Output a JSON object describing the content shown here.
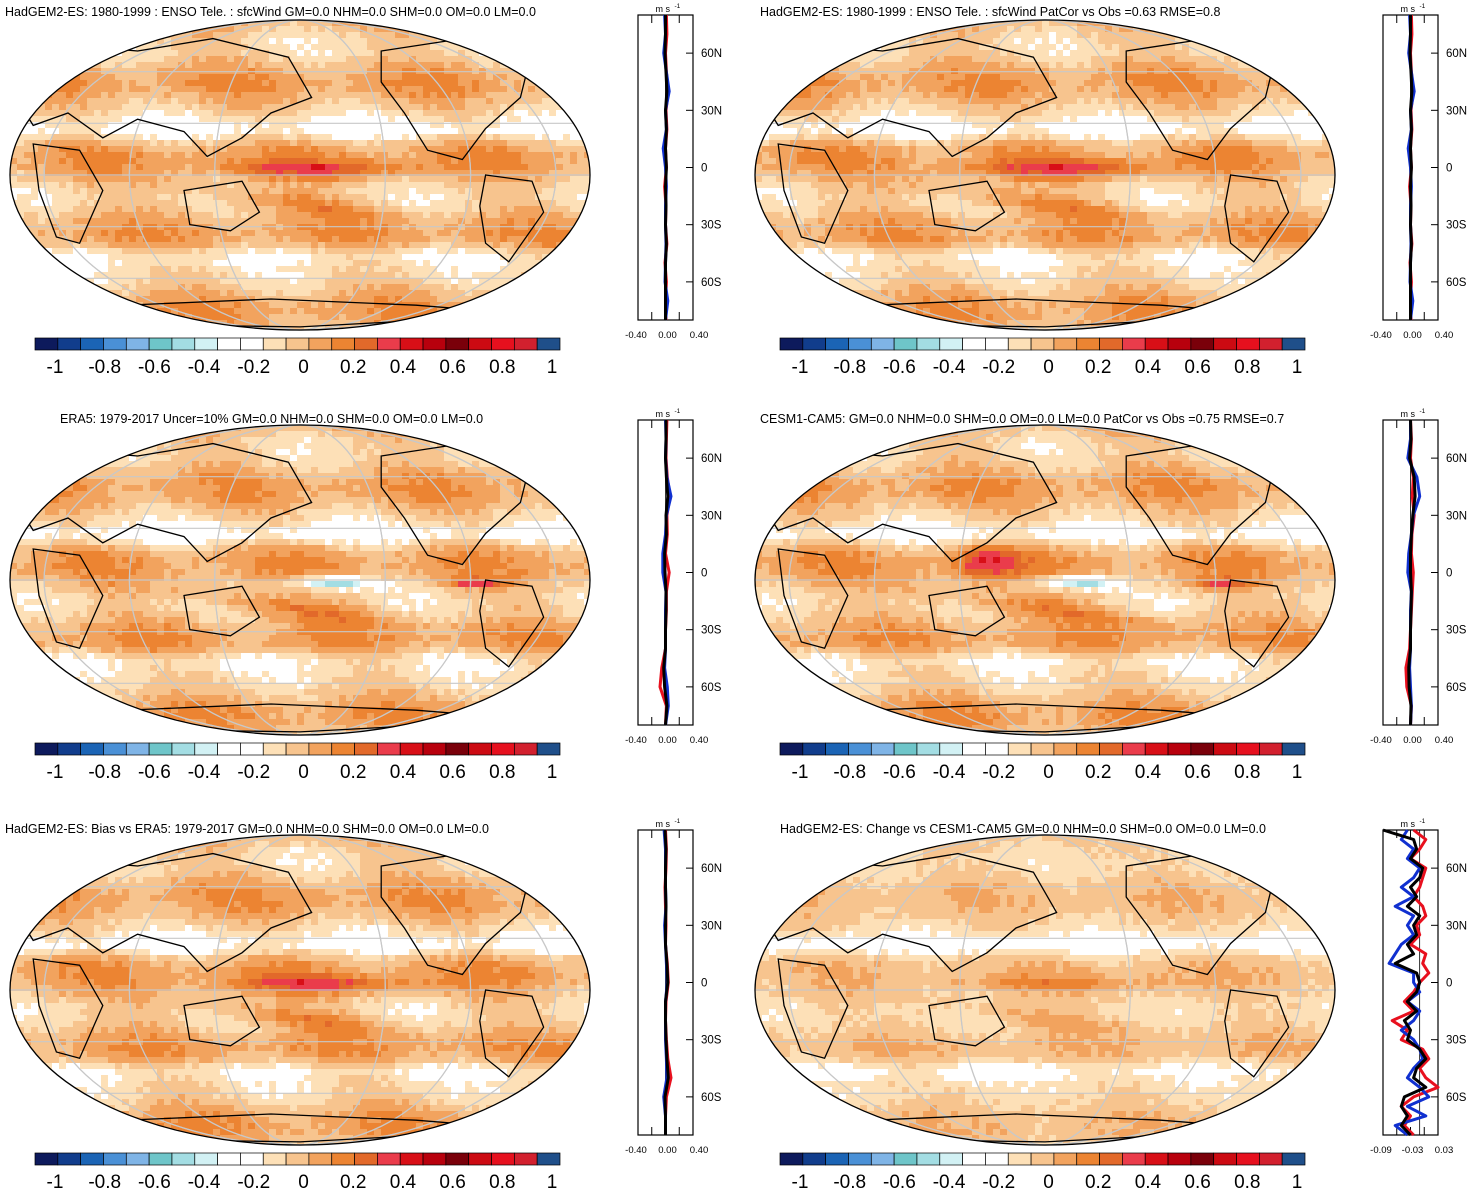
{
  "colorbar": {
    "colors": [
      "#0d1a5c",
      "#113d8c",
      "#1b64b5",
      "#4a90d6",
      "#7fb4e6",
      "#6ec5c9",
      "#a3dde3",
      "#d2f1f4",
      "#ffffff",
      "#ffffff",
      "#fde0b7",
      "#f7c48e",
      "#f2a35e",
      "#ec8432",
      "#e2692a",
      "#ea3c4b",
      "#d80f17",
      "#b8000d",
      "#7a000a",
      "#cc0a12",
      "#e6101e",
      "#d2202e",
      "#1f4f8a"
    ],
    "labels": [
      "-1",
      "-0.8",
      "-0.6",
      "-0.4",
      "-0.2",
      "0",
      "0.2",
      "0.4",
      "0.6",
      "0.8",
      "1"
    ]
  },
  "map_colors": {
    "land_line": "#000000",
    "grid": "#c8c8c8"
  },
  "profile_units": "m s",
  "profile_units_sup": "-1",
  "lat_labels": [
    "60N",
    "30N",
    "0",
    "30S",
    "60S"
  ],
  "panels": [
    {
      "id": "p1",
      "title": "HadGEM2-ES: 1980-1999 : ENSO Tele. : sfcWind GM=0.0 NHM=0.0 SHM=0.0 OM=0.0 LM=0.0",
      "profile_xticks": [
        "-0.40",
        "0.00",
        "0.40"
      ]
    },
    {
      "id": "p2",
      "title": "HadGEM2-ES: 1980-1999 : ENSO Tele. : sfcWind PatCor vs Obs =0.63 RMSE=0.8",
      "profile_xticks": [
        "-0.40",
        "0.00",
        "0.40"
      ]
    },
    {
      "id": "p3",
      "title": "ERA5: 1979-2017 Uncer=10% GM=0.0 NHM=0.0 SHM=0.0 OM=0.0 LM=0.0",
      "profile_xticks": [
        "-0.40",
        "0.00",
        "0.40"
      ]
    },
    {
      "id": "p4",
      "title": "CESM1-CAM5: GM=0.0 NHM=0.0 SHM=0.0 OM=0.0 LM=0.0 PatCor vs Obs =0.75 RMSE=0.7",
      "profile_xticks": [
        "-0.40",
        "0.00",
        "0.40"
      ]
    },
    {
      "id": "p5",
      "title": "HadGEM2-ES: Bias vs ERA5: 1979-2017 GM=0.0 NHM=0.0 SHM=0.0 OM=0.0 LM=0.0",
      "profile_xticks": [
        "-0.40",
        "0.00",
        "0.40"
      ]
    },
    {
      "id": "p6",
      "title": "HadGEM2-ES: Change vs CESM1-CAM5 GM=0.0 NHM=0.0 SHM=0.0 OM=0.0 LM=0.0",
      "profile_xticks": [
        "-0.09",
        "-0.03",
        "0.03"
      ]
    }
  ],
  "chart_data": [
    {
      "type": "heatmap",
      "panel": "p1",
      "colorbar_range": [
        -1,
        1
      ],
      "zonal_profile": {
        "xlim": [
          -0.6,
          0.6
        ],
        "ylim": [
          -80,
          80
        ],
        "lat": [
          80,
          70,
          60,
          50,
          40,
          30,
          20,
          10,
          0,
          -10,
          -20,
          -30,
          -40,
          -50,
          -60,
          -70,
          -80
        ],
        "series": [
          {
            "color": "#e8101e",
            "values": [
              0.02,
              0.03,
              0.0,
              0.02,
              0.06,
              0.01,
              0.03,
              0.0,
              0.02,
              -0.02,
              0.01,
              0.0,
              0.03,
              -0.01,
              0.02,
              0.0,
              0.01
            ]
          },
          {
            "color": "#1030d0",
            "values": [
              -0.02,
              0.0,
              -0.04,
              0.02,
              0.08,
              0.0,
              0.02,
              -0.05,
              0.0,
              0.02,
              0.0,
              0.0,
              0.01,
              0.0,
              -0.01,
              0.05,
              0.0
            ]
          },
          {
            "color": "#000000",
            "values": [
              0.0,
              0.0,
              -0.01,
              0.01,
              0.03,
              0.0,
              0.02,
              0.0,
              0.02,
              0.0,
              0.01,
              0.0,
              0.02,
              0.0,
              0.0,
              0.0,
              0.0
            ]
          }
        ]
      }
    },
    {
      "type": "heatmap",
      "panel": "p2",
      "colorbar_range": [
        -1,
        1
      ],
      "zonal_profile": {
        "xlim": [
          -0.6,
          0.6
        ],
        "ylim": [
          -80,
          80
        ],
        "lat": [
          80,
          70,
          60,
          50,
          40,
          30,
          20,
          10,
          0,
          -10,
          -20,
          -30,
          -40,
          -50,
          -60,
          -70,
          -80
        ],
        "series": [
          {
            "color": "#e8101e",
            "values": [
              0.02,
              0.03,
              0.0,
              0.02,
              0.06,
              0.01,
              0.03,
              0.0,
              0.02,
              -0.02,
              0.01,
              0.0,
              0.03,
              -0.01,
              0.02,
              0.0,
              0.01
            ]
          },
          {
            "color": "#1030d0",
            "values": [
              -0.02,
              0.0,
              -0.04,
              0.02,
              0.08,
              0.0,
              0.02,
              -0.05,
              0.0,
              0.02,
              0.0,
              0.0,
              0.01,
              0.0,
              -0.01,
              0.05,
              0.0
            ]
          },
          {
            "color": "#000000",
            "values": [
              0.0,
              0.0,
              -0.01,
              0.01,
              0.03,
              0.0,
              0.02,
              0.0,
              0.02,
              0.0,
              0.01,
              0.0,
              0.02,
              0.0,
              0.0,
              0.0,
              0.0
            ]
          }
        ]
      }
    },
    {
      "type": "heatmap",
      "panel": "p3",
      "colorbar_range": [
        -1,
        1
      ],
      "zonal_profile": {
        "xlim": [
          -0.6,
          0.6
        ],
        "ylim": [
          -80,
          80
        ],
        "lat": [
          80,
          70,
          60,
          50,
          40,
          30,
          20,
          10,
          0,
          -10,
          -20,
          -30,
          -40,
          -50,
          -60,
          -70,
          -80
        ],
        "series": [
          {
            "color": "#e8101e",
            "values": [
              0.03,
              0.02,
              0.01,
              0.04,
              0.1,
              0.03,
              0.04,
              0.0,
              0.08,
              0.02,
              0.02,
              0.0,
              0.0,
              -0.08,
              -0.12,
              0.02,
              0.0
            ]
          },
          {
            "color": "#1030d0",
            "values": [
              0.0,
              0.01,
              0.0,
              0.03,
              0.12,
              0.02,
              0.0,
              -0.06,
              -0.06,
              0.01,
              0.0,
              0.0,
              0.0,
              -0.02,
              0.04,
              0.06,
              0.0
            ]
          },
          {
            "color": "#000000",
            "values": [
              0.01,
              0.01,
              0.0,
              0.02,
              0.05,
              0.01,
              0.02,
              -0.02,
              -0.01,
              0.01,
              0.01,
              0.0,
              0.0,
              -0.04,
              -0.02,
              0.03,
              0.0
            ]
          }
        ]
      }
    },
    {
      "type": "heatmap",
      "panel": "p4",
      "colorbar_range": [
        -1,
        1
      ],
      "zonal_profile": {
        "xlim": [
          -0.6,
          0.6
        ],
        "ylim": [
          -80,
          80
        ],
        "lat": [
          80,
          70,
          60,
          50,
          40,
          30,
          20,
          10,
          0,
          -10,
          -20,
          -30,
          -40,
          -50,
          -60,
          -70,
          -80
        ],
        "series": [
          {
            "color": "#e8101e",
            "values": [
              0.0,
              0.02,
              0.0,
              0.06,
              0.04,
              0.08,
              0.03,
              0.02,
              0.06,
              0.04,
              0.02,
              0.0,
              -0.02,
              -0.1,
              -0.08,
              0.02,
              0.0
            ]
          },
          {
            "color": "#1030d0",
            "values": [
              0.0,
              0.0,
              -0.06,
              0.14,
              0.2,
              0.06,
              0.02,
              -0.04,
              -0.06,
              0.02,
              0.0,
              0.0,
              0.0,
              -0.02,
              0.0,
              0.02,
              0.0
            ]
          },
          {
            "color": "#000000",
            "values": [
              0.0,
              0.01,
              -0.02,
              0.08,
              0.1,
              0.05,
              0.02,
              0.0,
              0.0,
              0.02,
              0.01,
              0.0,
              0.0,
              -0.04,
              -0.03,
              0.01,
              0.0
            ]
          }
        ]
      }
    },
    {
      "type": "heatmap",
      "panel": "p5",
      "colorbar_range": [
        -1,
        1
      ],
      "zonal_profile": {
        "xlim": [
          -0.6,
          0.6
        ],
        "ylim": [
          -80,
          80
        ],
        "lat": [
          80,
          70,
          60,
          50,
          40,
          30,
          20,
          10,
          0,
          -10,
          -20,
          -30,
          -40,
          -50,
          -60,
          -70,
          -80
        ],
        "series": [
          {
            "color": "#e8101e",
            "values": [
              0.0,
              0.02,
              0.01,
              -0.01,
              0.0,
              0.01,
              0.0,
              0.04,
              0.06,
              0.01,
              0.0,
              0.02,
              0.05,
              0.12,
              0.02,
              0.0,
              0.0
            ]
          },
          {
            "color": "#1030d0",
            "values": [
              -0.03,
              0.0,
              0.0,
              0.0,
              0.01,
              -0.02,
              0.0,
              0.02,
              0.04,
              0.0,
              0.0,
              0.0,
              0.02,
              0.03,
              -0.04,
              0.0,
              0.0
            ]
          },
          {
            "color": "#000000",
            "values": [
              -0.01,
              0.01,
              0.0,
              0.0,
              0.01,
              0.0,
              0.0,
              0.03,
              0.05,
              0.0,
              0.0,
              0.01,
              0.03,
              0.06,
              -0.01,
              0.0,
              0.0
            ]
          }
        ]
      }
    },
    {
      "type": "heatmap",
      "panel": "p6",
      "colorbar_range": [
        -1,
        1
      ],
      "zonal_profile": {
        "xlim": [
          -0.12,
          0.06
        ],
        "ylim": [
          -80,
          80
        ],
        "lat": [
          80,
          75,
          70,
          65,
          60,
          55,
          50,
          45,
          40,
          35,
          30,
          25,
          20,
          15,
          10,
          5,
          0,
          -5,
          -10,
          -15,
          -20,
          -25,
          -30,
          -35,
          -40,
          -45,
          -50,
          -55,
          -60,
          -65,
          -70,
          -75,
          -80
        ],
        "series": [
          {
            "color": "#e8101e",
            "values": [
              -0.02,
              0.02,
              0.0,
              -0.03,
              0.02,
              0.01,
              0.0,
              -0.02,
              0.01,
              0.02,
              -0.01,
              0.0,
              -0.03,
              0.02,
              0.01,
              0.03,
              0.0,
              -0.02,
              -0.05,
              -0.02,
              -0.09,
              -0.04,
              -0.06,
              0.01,
              0.03,
              0.0,
              0.02,
              0.06,
              -0.02,
              -0.06,
              -0.03,
              -0.05,
              -0.02
            ]
          },
          {
            "color": "#1030d0",
            "values": [
              -0.04,
              -0.06,
              -0.02,
              -0.04,
              0.0,
              -0.02,
              -0.06,
              -0.02,
              -0.08,
              -0.02,
              -0.04,
              -0.02,
              -0.06,
              -0.08,
              -0.1,
              -0.02,
              -0.02,
              0.0,
              -0.04,
              0.0,
              -0.02,
              -0.06,
              -0.02,
              0.0,
              0.01,
              -0.02,
              -0.04,
              0.0,
              0.03,
              -0.04,
              0.02,
              -0.08,
              -0.04
            ]
          },
          {
            "color": "#000000",
            "values": [
              -0.12,
              -0.02,
              -0.01,
              -0.03,
              0.01,
              0.0,
              -0.03,
              -0.01,
              -0.04,
              0.0,
              -0.02,
              -0.01,
              -0.04,
              -0.02,
              -0.08,
              -0.01,
              0.0,
              -0.01,
              -0.04,
              -0.01,
              -0.05,
              -0.03,
              -0.04,
              0.0,
              0.02,
              -0.01,
              -0.02,
              0.02,
              -0.05,
              -0.06,
              -0.04,
              -0.06,
              -0.03
            ]
          }
        ]
      }
    }
  ]
}
